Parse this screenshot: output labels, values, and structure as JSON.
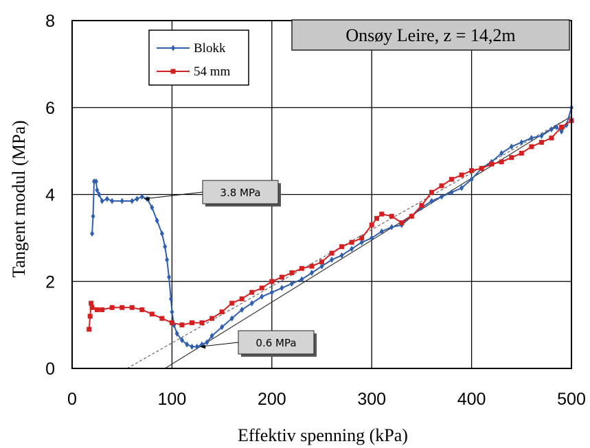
{
  "chart_data": {
    "type": "line",
    "title": "Onsøy Leire, z = 14,2m",
    "xlabel": "Effektiv spenning (kPa)",
    "ylabel": "Tangent modul (MPa)",
    "xlim": [
      0,
      500
    ],
    "ylim": [
      0,
      8
    ],
    "x_ticks": [
      "0",
      "100",
      "200",
      "300",
      "400",
      "500"
    ],
    "y_ticks": [
      "0",
      "2",
      "4",
      "6",
      "8"
    ],
    "grid": true,
    "legend_position": "top-left",
    "series": [
      {
        "name": "Blokk",
        "color": "#2f5fae",
        "marker": "diamond",
        "points": [
          [
            20,
            3.1
          ],
          [
            21,
            3.5
          ],
          [
            22,
            4.3
          ],
          [
            24,
            4.3
          ],
          [
            25,
            4.1
          ],
          [
            27,
            4.0
          ],
          [
            30,
            3.85
          ],
          [
            35,
            3.9
          ],
          [
            40,
            3.85
          ],
          [
            50,
            3.85
          ],
          [
            60,
            3.85
          ],
          [
            65,
            3.9
          ],
          [
            70,
            3.95
          ],
          [
            75,
            3.9
          ],
          [
            80,
            3.7
          ],
          [
            85,
            3.4
          ],
          [
            90,
            3.1
          ],
          [
            93,
            2.8
          ],
          [
            95,
            2.5
          ],
          [
            97,
            2.1
          ],
          [
            99,
            1.6
          ],
          [
            100,
            1.3
          ],
          [
            102,
            1.0
          ],
          [
            105,
            0.8
          ],
          [
            110,
            0.65
          ],
          [
            115,
            0.55
          ],
          [
            120,
            0.5
          ],
          [
            125,
            0.5
          ],
          [
            130,
            0.55
          ],
          [
            135,
            0.6
          ],
          [
            140,
            0.75
          ],
          [
            150,
            0.95
          ],
          [
            160,
            1.15
          ],
          [
            170,
            1.35
          ],
          [
            180,
            1.5
          ],
          [
            190,
            1.65
          ],
          [
            200,
            1.75
          ],
          [
            210,
            1.85
          ],
          [
            220,
            1.95
          ],
          [
            230,
            2.05
          ],
          [
            240,
            2.2
          ],
          [
            250,
            2.35
          ],
          [
            260,
            2.5
          ],
          [
            270,
            2.6
          ],
          [
            280,
            2.75
          ],
          [
            290,
            2.9
          ],
          [
            300,
            3.0
          ],
          [
            310,
            3.15
          ],
          [
            320,
            3.25
          ],
          [
            330,
            3.3
          ],
          [
            340,
            3.5
          ],
          [
            350,
            3.7
          ],
          [
            360,
            3.85
          ],
          [
            370,
            3.95
          ],
          [
            380,
            4.05
          ],
          [
            390,
            4.15
          ],
          [
            400,
            4.35
          ],
          [
            410,
            4.6
          ],
          [
            420,
            4.75
          ],
          [
            430,
            4.95
          ],
          [
            440,
            5.1
          ],
          [
            450,
            5.2
          ],
          [
            460,
            5.3
          ],
          [
            470,
            5.35
          ],
          [
            480,
            5.5
          ],
          [
            485,
            5.55
          ],
          [
            490,
            5.45
          ],
          [
            495,
            5.6
          ],
          [
            500,
            6.0
          ]
        ]
      },
      {
        "name": "54 mm",
        "color": "#d42020",
        "marker": "square",
        "points": [
          [
            17,
            0.9
          ],
          [
            18,
            1.2
          ],
          [
            19,
            1.5
          ],
          [
            20,
            1.4
          ],
          [
            25,
            1.35
          ],
          [
            30,
            1.35
          ],
          [
            40,
            1.4
          ],
          [
            50,
            1.4
          ],
          [
            60,
            1.4
          ],
          [
            70,
            1.35
          ],
          [
            80,
            1.25
          ],
          [
            90,
            1.15
          ],
          [
            100,
            1.05
          ],
          [
            110,
            1.0
          ],
          [
            120,
            1.05
          ],
          [
            130,
            1.05
          ],
          [
            140,
            1.15
          ],
          [
            150,
            1.3
          ],
          [
            160,
            1.5
          ],
          [
            170,
            1.6
          ],
          [
            180,
            1.75
          ],
          [
            190,
            1.85
          ],
          [
            200,
            2.0
          ],
          [
            210,
            2.1
          ],
          [
            220,
            2.2
          ],
          [
            230,
            2.3
          ],
          [
            240,
            2.35
          ],
          [
            250,
            2.45
          ],
          [
            260,
            2.65
          ],
          [
            270,
            2.8
          ],
          [
            280,
            2.9
          ],
          [
            290,
            3.0
          ],
          [
            300,
            3.3
          ],
          [
            305,
            3.45
          ],
          [
            310,
            3.55
          ],
          [
            320,
            3.5
          ],
          [
            330,
            3.35
          ],
          [
            340,
            3.5
          ],
          [
            350,
            3.75
          ],
          [
            360,
            4.05
          ],
          [
            370,
            4.2
          ],
          [
            380,
            4.35
          ],
          [
            390,
            4.45
          ],
          [
            400,
            4.55
          ],
          [
            410,
            4.6
          ],
          [
            420,
            4.7
          ],
          [
            430,
            4.75
          ],
          [
            440,
            4.85
          ],
          [
            450,
            4.95
          ],
          [
            460,
            5.1
          ],
          [
            470,
            5.2
          ],
          [
            480,
            5.3
          ],
          [
            490,
            5.55
          ],
          [
            500,
            5.7
          ]
        ]
      }
    ],
    "fit_lines": [
      {
        "style": "solid",
        "from": [
          93,
          0
        ],
        "to": [
          500,
          5.8
        ]
      },
      {
        "style": "dashed",
        "from": [
          55,
          0
        ],
        "to": [
          500,
          5.8
        ]
      }
    ],
    "annotations": [
      {
        "text": "3.8 MPa",
        "target": [
          72,
          3.9
        ]
      },
      {
        "text": "0.6 MPa",
        "target": [
          128,
          0.5
        ]
      }
    ]
  }
}
